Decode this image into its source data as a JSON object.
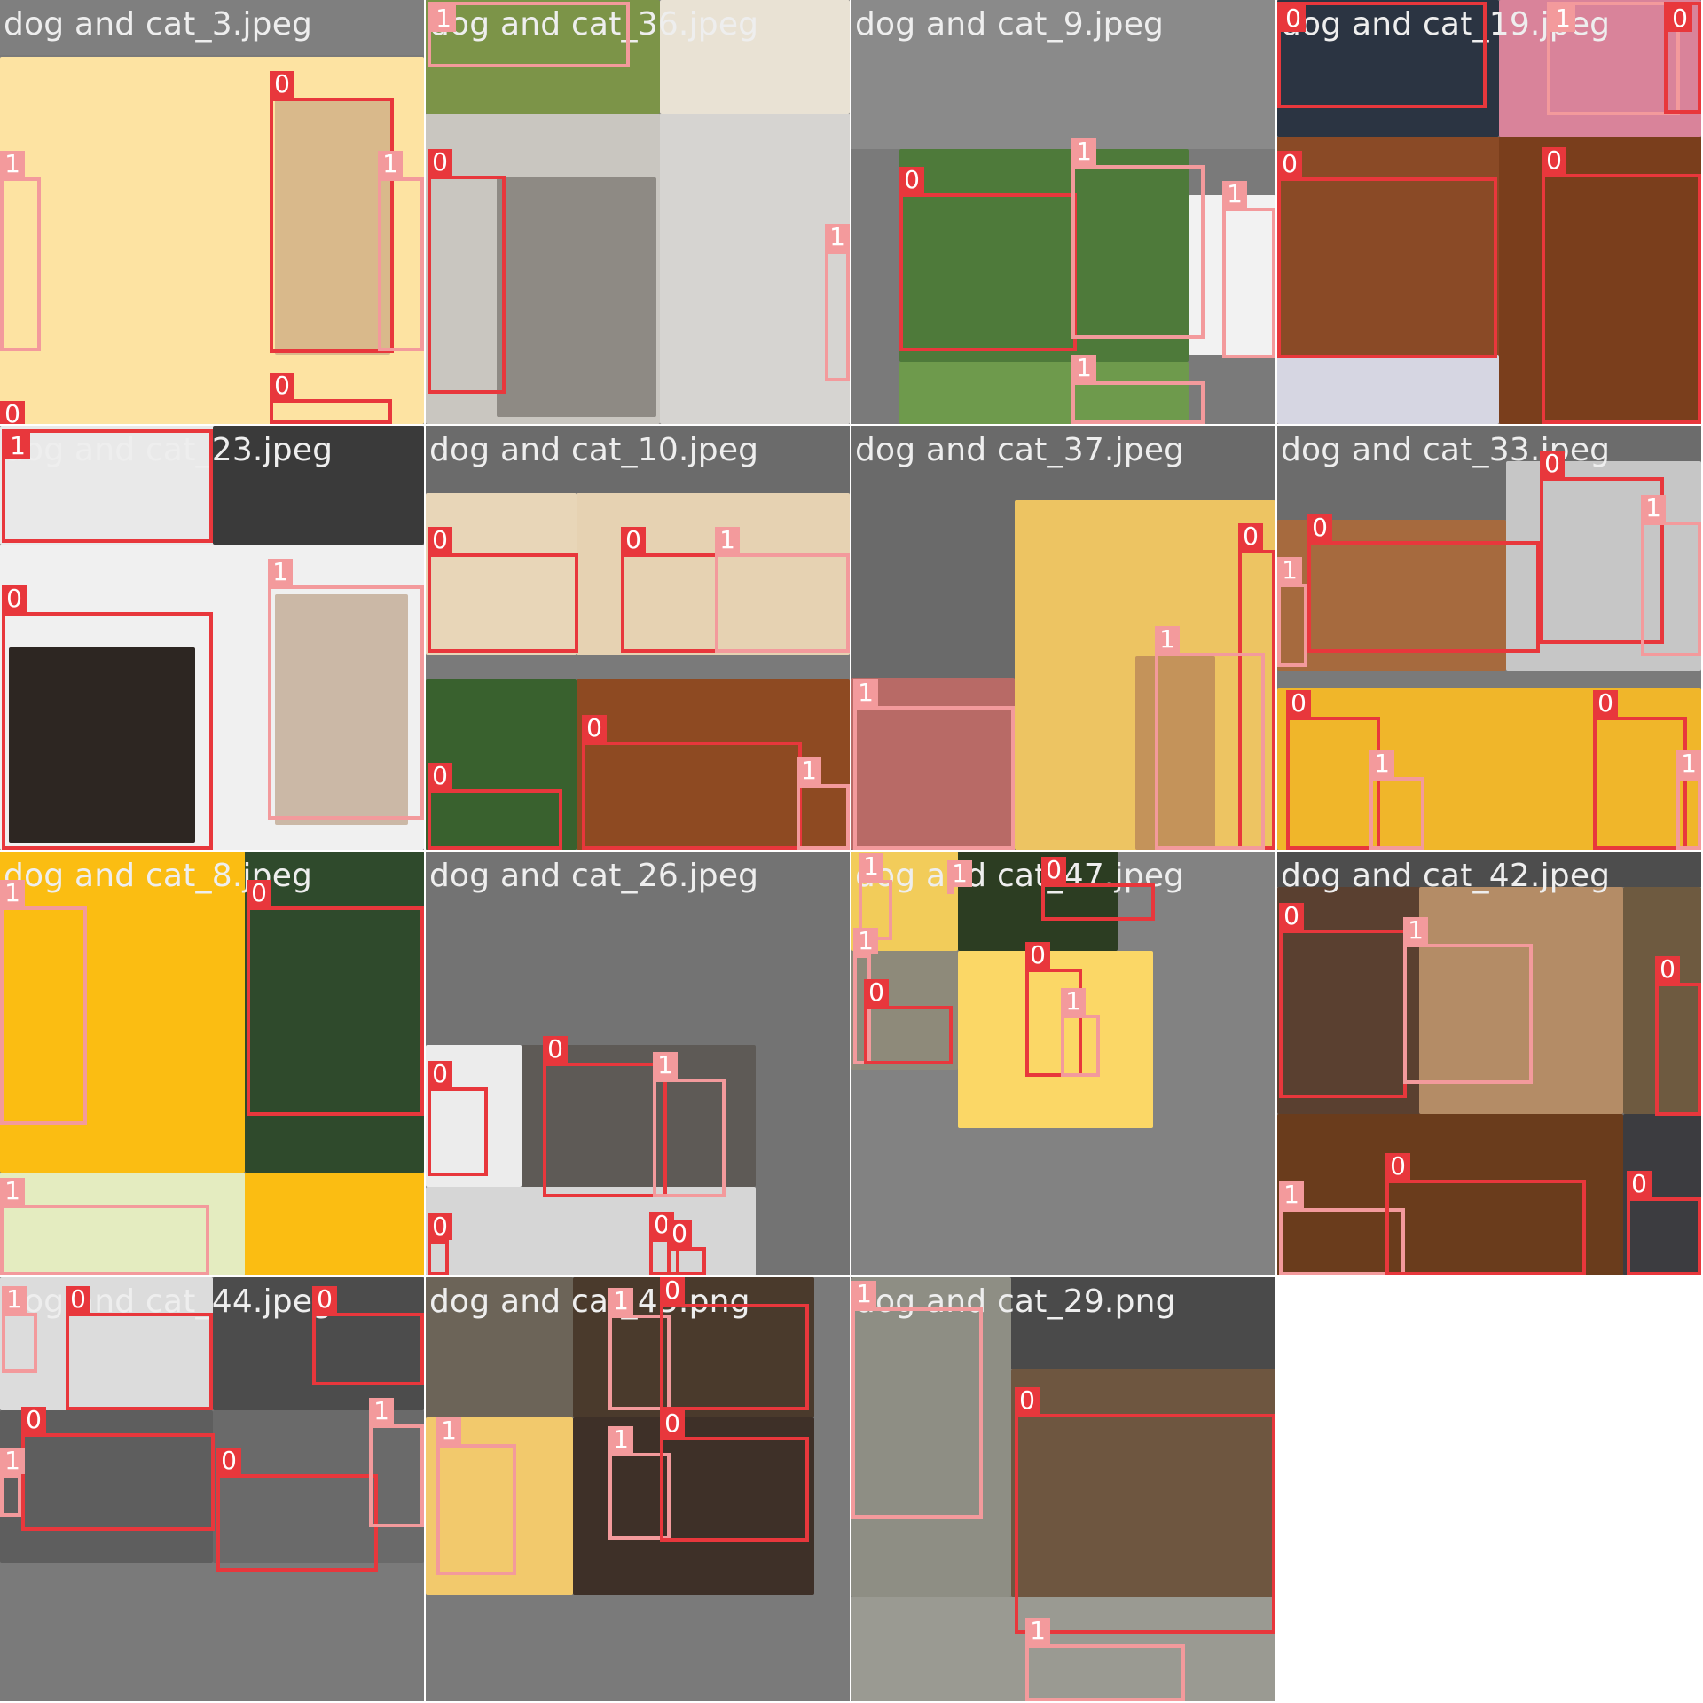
{
  "colors": {
    "class_0": "#e8373c",
    "class_1": "#f39a9c"
  },
  "tiles": [
    {
      "title": "dog and cat_3.jpeg",
      "boxes": [
        {
          "label": "0"
        },
        {
          "label": "1"
        },
        {
          "label": "1"
        },
        {
          "label": "0"
        },
        {
          "label": "0"
        }
      ]
    },
    {
      "title": "dog and cat_36.jpeg",
      "boxes": [
        {
          "label": "1"
        },
        {
          "label": "0"
        },
        {
          "label": "1"
        }
      ]
    },
    {
      "title": "dog and cat_9.jpeg",
      "boxes": [
        {
          "label": "0"
        },
        {
          "label": "1"
        },
        {
          "label": "1"
        },
        {
          "label": "1"
        }
      ]
    },
    {
      "title": "dog and cat_19.jpeg",
      "boxes": [
        {
          "label": "0"
        },
        {
          "label": "1"
        },
        {
          "label": "0"
        },
        {
          "label": "0"
        },
        {
          "label": "0"
        }
      ]
    },
    {
      "title": "dog and cat_23.jpeg",
      "boxes": [
        {
          "label": "1"
        },
        {
          "label": "0"
        },
        {
          "label": "1"
        }
      ]
    },
    {
      "title": "dog and cat_10.jpeg",
      "boxes": [
        {
          "label": "0"
        },
        {
          "label": "0"
        },
        {
          "label": "1"
        },
        {
          "label": "0"
        },
        {
          "label": "0"
        },
        {
          "label": "1"
        }
      ]
    },
    {
      "title": "dog and cat_37.jpeg",
      "boxes": [
        {
          "label": "0"
        },
        {
          "label": "1"
        },
        {
          "label": "1"
        }
      ]
    },
    {
      "title": "dog and cat_33.jpeg",
      "boxes": [
        {
          "label": "0"
        },
        {
          "label": "1"
        },
        {
          "label": "0"
        },
        {
          "label": "1"
        },
        {
          "label": "0"
        },
        {
          "label": "1"
        },
        {
          "label": "0"
        },
        {
          "label": "1"
        }
      ]
    },
    {
      "title": "dog and cat_8.jpeg",
      "boxes": [
        {
          "label": "1"
        },
        {
          "label": "0"
        },
        {
          "label": "1"
        }
      ]
    },
    {
      "title": "dog and cat_26.jpeg",
      "boxes": [
        {
          "label": "0"
        },
        {
          "label": "0"
        },
        {
          "label": "1"
        },
        {
          "label": "0"
        },
        {
          "label": "0"
        },
        {
          "label": "0"
        }
      ]
    },
    {
      "title": "dog and cat_47.jpeg",
      "boxes": [
        {
          "label": "1"
        },
        {
          "label": "1"
        },
        {
          "label": "0"
        },
        {
          "label": "1"
        },
        {
          "label": "0"
        },
        {
          "label": "0"
        },
        {
          "label": "1"
        }
      ]
    },
    {
      "title": "dog and cat_42.jpeg",
      "boxes": [
        {
          "label": "0"
        },
        {
          "label": "1"
        },
        {
          "label": "0"
        },
        {
          "label": "1"
        },
        {
          "label": "0"
        },
        {
          "label": "0"
        }
      ]
    },
    {
      "title": "dog and cat_44.jpeg",
      "boxes": [
        {
          "label": "1"
        },
        {
          "label": "0"
        },
        {
          "label": "0"
        },
        {
          "label": "0"
        },
        {
          "label": "1"
        },
        {
          "label": "0"
        },
        {
          "label": "1"
        }
      ]
    },
    {
      "title": "dog and cat_43.png",
      "boxes": [
        {
          "label": "1"
        },
        {
          "label": "1"
        },
        {
          "label": "0"
        },
        {
          "label": "1"
        },
        {
          "label": "0"
        }
      ]
    },
    {
      "title": "dog and cat_29.png",
      "boxes": [
        {
          "label": "1"
        },
        {
          "label": "0"
        },
        {
          "label": "1"
        }
      ]
    }
  ]
}
